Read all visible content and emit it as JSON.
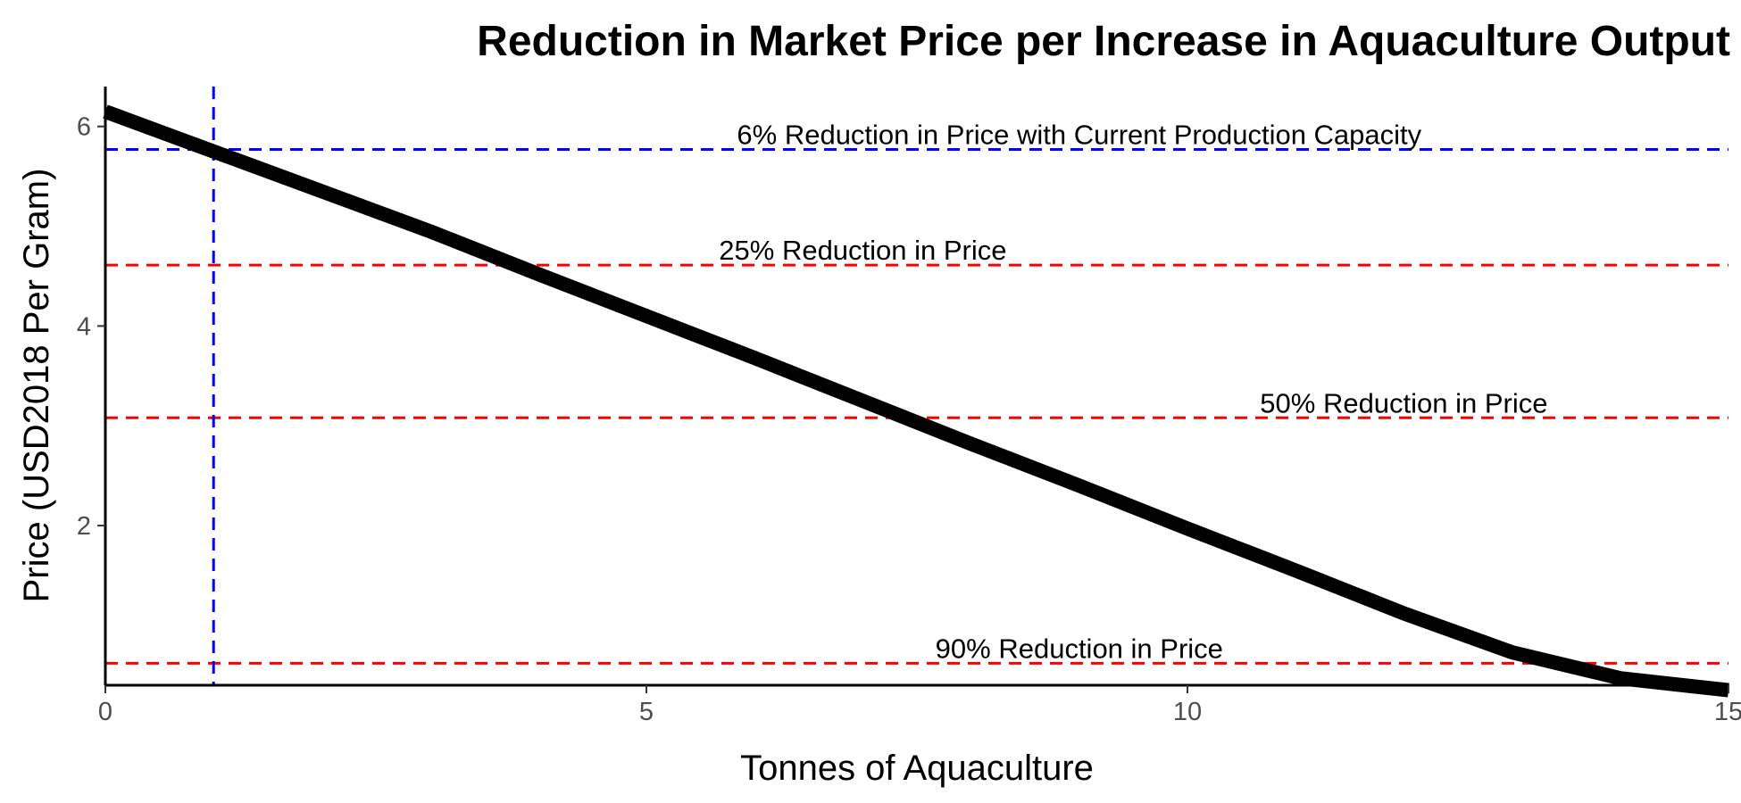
{
  "chart_data": {
    "type": "line",
    "title": "Reduction in Market Price per Increase in Aquaculture Output",
    "xlabel": "Tonnes of Aquaculture",
    "ylabel": "Price (USD2018 Per Gram)",
    "xlim": [
      0,
      15
    ],
    "ylim": [
      0.4,
      6.4
    ],
    "xticks": [
      0,
      5,
      10,
      15
    ],
    "yticks": [
      2,
      4,
      6
    ],
    "grid": false,
    "series": [
      {
        "color": "#000000",
        "x": [
          0,
          1,
          2,
          3,
          4,
          5,
          6,
          7,
          8,
          9,
          10,
          11,
          12,
          13,
          14,
          15
        ],
        "y": [
          6.15,
          5.75,
          5.35,
          4.95,
          4.52,
          4.1,
          3.68,
          3.25,
          2.82,
          2.4,
          1.97,
          1.55,
          1.12,
          0.73,
          0.47,
          0.35
        ]
      }
    ],
    "reference_lines": [
      {
        "orientation": "horizontal",
        "value": 5.77,
        "color": "#0000ff",
        "style": "dashed",
        "label": "6% Reduction in Price with Current Production Capacity",
        "label_x": 9
      },
      {
        "orientation": "horizontal",
        "value": 4.61,
        "color": "#ff0000",
        "style": "dashed",
        "label": "25% Reduction in Price",
        "label_x": 7
      },
      {
        "orientation": "horizontal",
        "value": 3.08,
        "color": "#ff0000",
        "style": "dashed",
        "label": "50% Reduction in Price",
        "label_x": 12
      },
      {
        "orientation": "horizontal",
        "value": 0.62,
        "color": "#ff0000",
        "style": "dashed",
        "label": "90% Reduction in Price",
        "label_x": 9
      },
      {
        "orientation": "vertical",
        "value": 1.0,
        "color": "#0000ff",
        "style": "dashed"
      }
    ]
  }
}
